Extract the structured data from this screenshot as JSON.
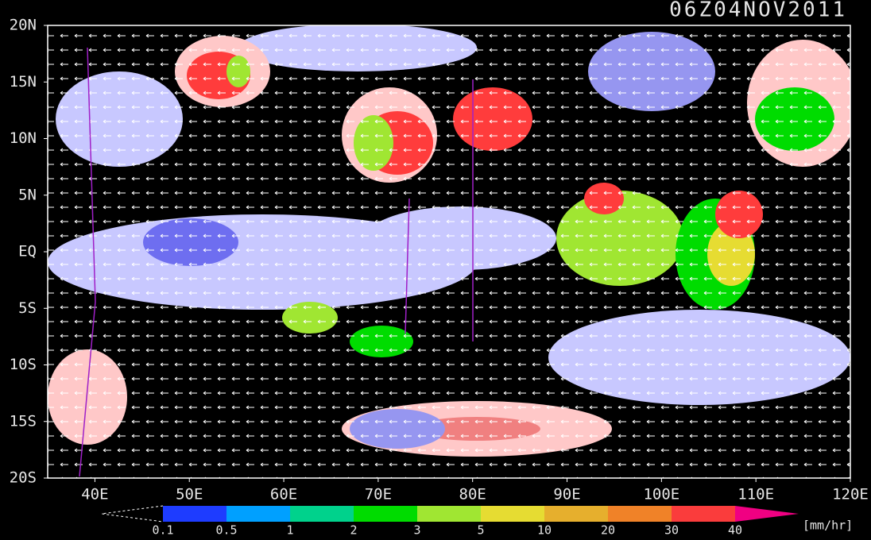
{
  "title": "06Z04NOV2011",
  "map": {
    "lat_labels": [
      "20N",
      "15N",
      "10N",
      "5N",
      "EQ",
      "5S",
      "10S",
      "15S",
      "20S"
    ],
    "lon_labels": [
      "40E",
      "50E",
      "60E",
      "70E",
      "80E",
      "90E",
      "100E",
      "110E",
      "120E"
    ]
  },
  "colorbar": {
    "levels": [
      0.1,
      0.5,
      1,
      2,
      3,
      5,
      10,
      20,
      30,
      40
    ],
    "colors": [
      "#1e3cff",
      "#00a0ff",
      "#00d28c",
      "#00dc00",
      "#a0e632",
      "#e6dc32",
      "#e6af2d",
      "#f08228",
      "#fa3c3c",
      "#f00082"
    ],
    "units": "[mm/hr]"
  }
}
